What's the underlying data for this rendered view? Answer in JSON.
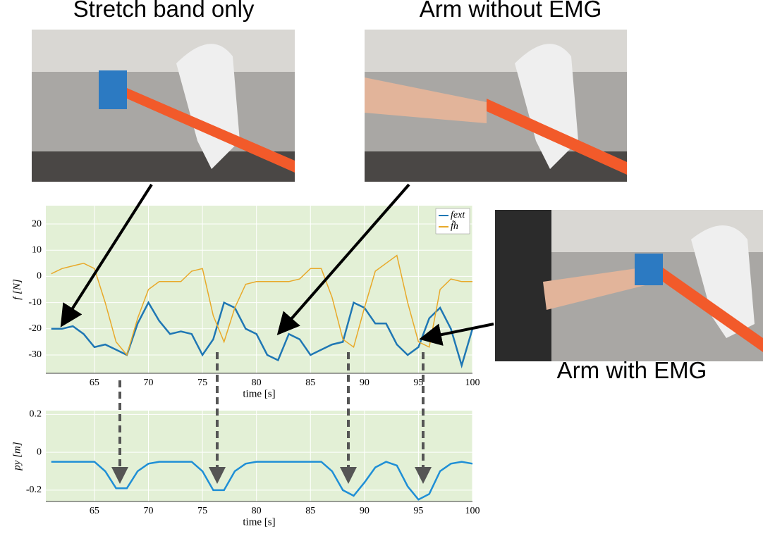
{
  "captions": [
    "Stretch band only",
    "Arm without EMG",
    "Arm with EMG"
  ],
  "chart_data": [
    {
      "type": "line",
      "ylabel": "f [N]",
      "xlabel": "time [s]",
      "x": [
        61,
        62,
        63,
        64,
        65,
        66,
        67,
        68,
        69,
        70,
        71,
        72,
        73,
        74,
        75,
        76,
        77,
        78,
        79,
        80,
        81,
        82,
        83,
        84,
        85,
        86,
        87,
        88,
        89,
        90,
        91,
        92,
        93,
        94,
        95,
        96,
        97,
        98,
        99,
        100
      ],
      "series": [
        {
          "name": "fext",
          "color": "#1f77b4",
          "values": [
            -20,
            -20,
            -19,
            -22,
            -27,
            -26,
            -28,
            -30,
            -18,
            -10,
            -17,
            -22,
            -21,
            -22,
            -30,
            -24,
            -10,
            -12,
            -20,
            -22,
            -30,
            -32,
            -22,
            -24,
            -30,
            -28,
            -26,
            -25,
            -10,
            -12,
            -18,
            -18,
            -26,
            -30,
            -27,
            -16,
            -12,
            -20,
            -34,
            -20
          ]
        },
        {
          "name": "f̃h",
          "color": "#e8a92a",
          "values": [
            1,
            3,
            4,
            5,
            3,
            -10,
            -25,
            -30,
            -16,
            -5,
            -2,
            -2,
            -2,
            2,
            3,
            -15,
            -25,
            -12,
            -3,
            -2,
            -2,
            -2,
            -2,
            -1,
            3,
            3,
            -8,
            -24,
            -27,
            -12,
            2,
            5,
            8,
            -10,
            -25,
            -27,
            -5,
            -1,
            -2,
            -2
          ]
        }
      ],
      "xlim": [
        60.5,
        100
      ],
      "ylim": [
        -37,
        27
      ],
      "xticks": [
        65,
        70,
        75,
        80,
        85,
        90,
        95,
        100
      ],
      "yticks": [
        -30,
        -20,
        -10,
        0,
        10,
        20
      ],
      "grid": true,
      "legend": "top-right"
    },
    {
      "type": "line",
      "ylabel": "py [m]",
      "xlabel": "time [s]",
      "x": [
        61,
        62,
        63,
        64,
        65,
        66,
        67,
        68,
        69,
        70,
        71,
        72,
        73,
        74,
        75,
        76,
        77,
        78,
        79,
        80,
        81,
        82,
        83,
        84,
        85,
        86,
        87,
        88,
        89,
        90,
        91,
        92,
        93,
        94,
        95,
        96,
        97,
        98,
        99,
        100
      ],
      "series": [
        {
          "name": "py",
          "color": "#1f8fd6",
          "values": [
            -0.05,
            -0.05,
            -0.05,
            -0.05,
            -0.05,
            -0.1,
            -0.19,
            -0.19,
            -0.1,
            -0.06,
            -0.05,
            -0.05,
            -0.05,
            -0.05,
            -0.1,
            -0.2,
            -0.2,
            -0.1,
            -0.06,
            -0.05,
            -0.05,
            -0.05,
            -0.05,
            -0.05,
            -0.05,
            -0.05,
            -0.1,
            -0.2,
            -0.23,
            -0.16,
            -0.08,
            -0.05,
            -0.07,
            -0.18,
            -0.25,
            -0.22,
            -0.1,
            -0.06,
            -0.05,
            -0.06
          ]
        }
      ],
      "xlim": [
        60.5,
        100
      ],
      "ylim": [
        -0.26,
        0.22
      ],
      "xticks": [
        65,
        70,
        75,
        80,
        85,
        90,
        95,
        100
      ],
      "yticks": [
        -0.2,
        0,
        0.2
      ],
      "grid": true
    }
  ]
}
